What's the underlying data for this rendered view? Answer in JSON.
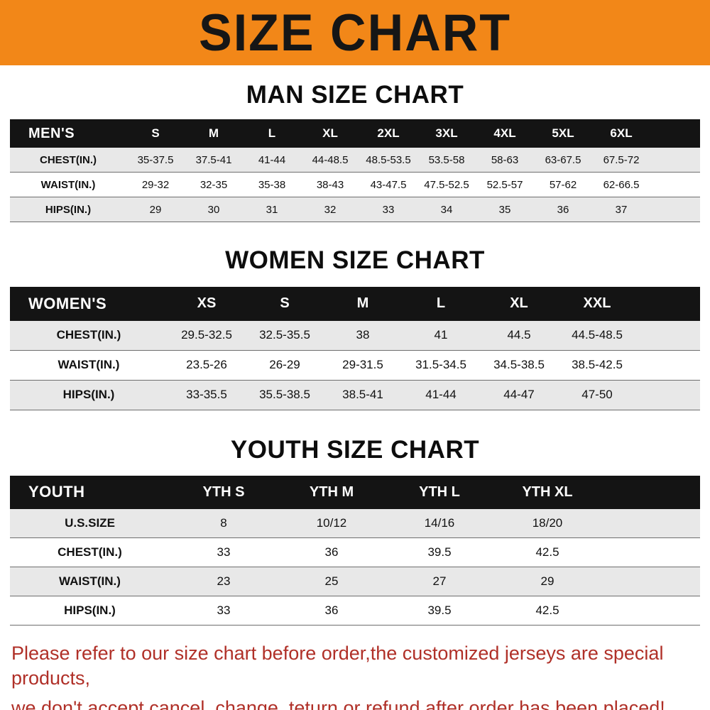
{
  "banner": {
    "title": "SIZE CHART"
  },
  "colors": {
    "banner_bg": "#f28718",
    "banner_text": "#161616",
    "table_header_bg": "#141414",
    "table_header_text": "#ffffff",
    "row_shade": "#e8e8e8",
    "footer_text": "#b03028"
  },
  "chart_data": [
    {
      "type": "table",
      "title": "MAN SIZE CHART",
      "header_label": "MEN'S",
      "columns": [
        "S",
        "M",
        "L",
        "XL",
        "2XL",
        "3XL",
        "4XL",
        "5XL",
        "6XL"
      ],
      "rows": [
        {
          "label": "CHEST(IN.)",
          "values": [
            "35-37.5",
            "37.5-41",
            "41-44",
            "44-48.5",
            "48.5-53.5",
            "53.5-58",
            "58-63",
            "63-67.5",
            "67.5-72"
          ]
        },
        {
          "label": "WAIST(IN.)",
          "values": [
            "29-32",
            "32-35",
            "35-38",
            "38-43",
            "43-47.5",
            "47.5-52.5",
            "52.5-57",
            "57-62",
            "62-66.5"
          ]
        },
        {
          "label": "HIPS(IN.)",
          "values": [
            "29",
            "30",
            "31",
            "32",
            "33",
            "34",
            "35",
            "36",
            "37"
          ]
        }
      ]
    },
    {
      "type": "table",
      "title": "WOMEN SIZE CHART",
      "header_label": "WOMEN'S",
      "columns": [
        "XS",
        "S",
        "M",
        "L",
        "XL",
        "XXL"
      ],
      "rows": [
        {
          "label": "CHEST(IN.)",
          "values": [
            "29.5-32.5",
            "32.5-35.5",
            "38",
            "41",
            "44.5",
            "44.5-48.5"
          ]
        },
        {
          "label": "WAIST(IN.)",
          "values": [
            "23.5-26",
            "26-29",
            "29-31.5",
            "31.5-34.5",
            "34.5-38.5",
            "38.5-42.5"
          ]
        },
        {
          "label": "HIPS(IN.)",
          "values": [
            "33-35.5",
            "35.5-38.5",
            "38.5-41",
            "41-44",
            "44-47",
            "47-50"
          ]
        }
      ]
    },
    {
      "type": "table",
      "title": "YOUTH SIZE CHART",
      "header_label": "YOUTH",
      "columns": [
        "YTH S",
        "YTH M",
        "YTH L",
        "YTH XL"
      ],
      "rows": [
        {
          "label": "U.S.SIZE",
          "values": [
            "8",
            "10/12",
            "14/16",
            "18/20"
          ]
        },
        {
          "label": "CHEST(IN.)",
          "values": [
            "33",
            "36",
            "39.5",
            "42.5"
          ]
        },
        {
          "label": "WAIST(IN.)",
          "values": [
            "23",
            "25",
            "27",
            "29"
          ]
        },
        {
          "label": "HIPS(IN.)",
          "values": [
            "33",
            "36",
            "39.5",
            "42.5"
          ]
        }
      ]
    }
  ],
  "footer": {
    "line1": "Please refer to our size chart before order,the customized jerseys are special products,",
    "line2": "we don't accept cancel, change, teturn or refund after order has been placed!"
  }
}
